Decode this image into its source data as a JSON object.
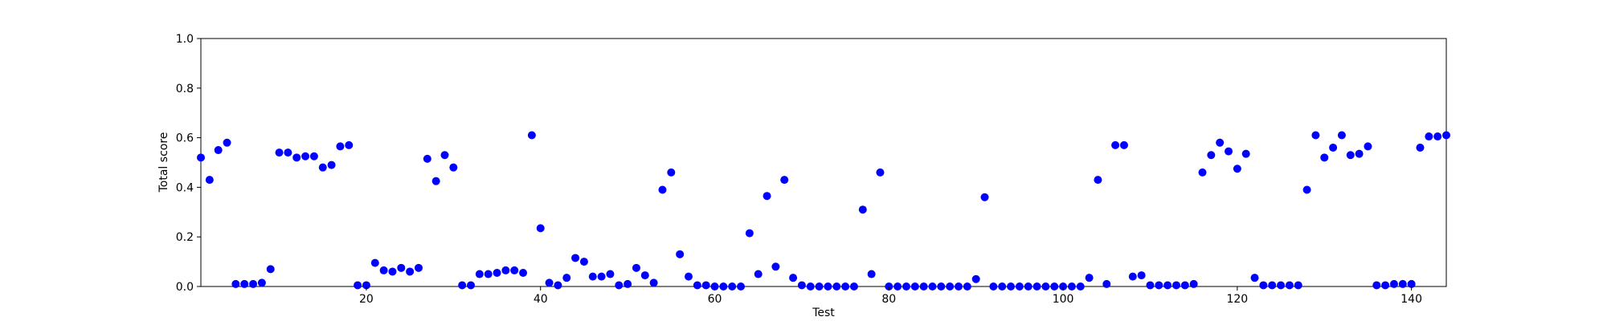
{
  "chart_data": {
    "type": "scatter",
    "title": "",
    "xlabel": "Test",
    "ylabel": "Total score",
    "xlim": [
      1,
      144
    ],
    "ylim": [
      0.0,
      1.0
    ],
    "x_ticks": [
      20,
      40,
      60,
      80,
      100,
      120,
      140
    ],
    "x_tick_labels": [
      "20",
      "40",
      "60",
      "80",
      "100",
      "120",
      "140"
    ],
    "y_ticks": [
      0.0,
      0.2,
      0.4,
      0.6,
      0.8,
      1.0
    ],
    "y_tick_labels": [
      "0.0",
      "0.2",
      "0.4",
      "0.6",
      "0.8",
      "1.0"
    ],
    "grid": false,
    "marker_color": "#0000ff",
    "series": [
      {
        "x": [
          1,
          2,
          3,
          4,
          5,
          6,
          7,
          8,
          9,
          10,
          11,
          12,
          13,
          14,
          15,
          16,
          17,
          18,
          19,
          20,
          21,
          22,
          23,
          24,
          25,
          26,
          27,
          28,
          29,
          30,
          31,
          32,
          33,
          34,
          35,
          36,
          37,
          38,
          39,
          40,
          41,
          42,
          43,
          44,
          45,
          46,
          47,
          48,
          49,
          50,
          51,
          52,
          53,
          54,
          55,
          56,
          57,
          58,
          59,
          60,
          61,
          62,
          63,
          64,
          65,
          66,
          67,
          68,
          69,
          70,
          71,
          72,
          73,
          74,
          75,
          76,
          77,
          78,
          79,
          80,
          81,
          82,
          83,
          84,
          85,
          86,
          87,
          88,
          89,
          90,
          91,
          92,
          93,
          94,
          95,
          96,
          97,
          98,
          99,
          100,
          101,
          102,
          103,
          104,
          105,
          106,
          107,
          108,
          109,
          110,
          111,
          112,
          113,
          114,
          115,
          116,
          117,
          118,
          119,
          120,
          121,
          122,
          123,
          124,
          125,
          126,
          127,
          128,
          129,
          130,
          131,
          132,
          133,
          134,
          135,
          136,
          137,
          138,
          139,
          140,
          141,
          142,
          143,
          144
        ],
        "y": [
          0.52,
          0.43,
          0.55,
          0.58,
          0.01,
          0.01,
          0.01,
          0.015,
          0.07,
          0.54,
          0.54,
          0.52,
          0.525,
          0.525,
          0.48,
          0.49,
          0.565,
          0.57,
          0.005,
          0.005,
          0.095,
          0.065,
          0.06,
          0.075,
          0.06,
          0.075,
          0.515,
          0.425,
          0.53,
          0.48,
          0.005,
          0.005,
          0.05,
          0.05,
          0.055,
          0.065,
          0.065,
          0.055,
          0.61,
          0.235,
          0.015,
          0.005,
          0.035,
          0.115,
          0.1,
          0.04,
          0.04,
          0.05,
          0.005,
          0.01,
          0.075,
          0.045,
          0.015,
          0.39,
          0.46,
          0.13,
          0.04,
          0.005,
          0.005,
          0.0,
          0.0,
          0.0,
          0.0,
          0.215,
          0.05,
          0.365,
          0.08,
          0.43,
          0.035,
          0.005,
          0.0,
          0.0,
          0.0,
          0.0,
          0.0,
          0.0,
          0.31,
          0.05,
          0.46,
          0.0,
          0.0,
          0.0,
          0.0,
          0.0,
          0.0,
          0.0,
          0.0,
          0.0,
          0.0,
          0.03,
          0.36,
          0.0,
          0.0,
          0.0,
          0.0,
          0.0,
          0.0,
          0.0,
          0.0,
          0.0,
          0.0,
          0.0,
          0.035,
          0.43,
          0.01,
          0.57,
          0.57,
          0.04,
          0.045,
          0.005,
          0.005,
          0.005,
          0.005,
          0.005,
          0.01,
          0.46,
          0.53,
          0.58,
          0.545,
          0.475,
          0.535,
          0.035,
          0.005,
          0.005,
          0.005,
          0.005,
          0.005,
          0.39,
          0.61,
          0.52,
          0.56,
          0.61,
          0.53,
          0.535,
          0.565,
          0.005,
          0.005,
          0.01,
          0.01,
          0.01,
          0.56,
          0.605,
          0.605,
          0.61
        ]
      }
    ]
  }
}
